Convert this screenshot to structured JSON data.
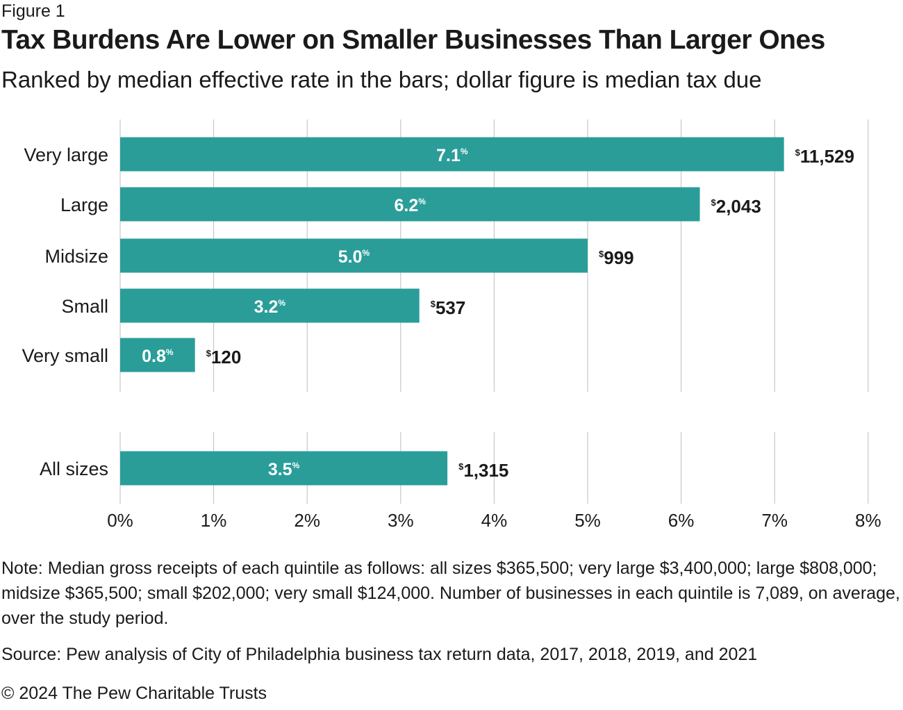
{
  "figure_label": "Figure 1",
  "title": "Tax Burdens Are Lower on Smaller Businesses Than Larger Ones",
  "subtitle": "Ranked by median effective rate in the bars; dollar figure is median tax due",
  "chart_data": {
    "type": "bar",
    "orientation": "horizontal",
    "title": "Tax Burdens Are Lower on Smaller Businesses Than Larger Ones",
    "subtitle": "Ranked by median effective rate in the bars; dollar figure is median tax due",
    "xlabel": "",
    "ylabel": "",
    "xlim": [
      0,
      8
    ],
    "grid": true,
    "bar_color": "#2a9d99",
    "x_ticks": [
      "0%",
      "1%",
      "2%",
      "3%",
      "4%",
      "5%",
      "6%",
      "7%",
      "8%"
    ],
    "categories": [
      "Very large",
      "Large",
      "Midsize",
      "Small",
      "Very small"
    ],
    "values": [
      7.1,
      6.2,
      5.0,
      3.2,
      0.8
    ],
    "value_labels": [
      "7.1",
      "6.2",
      "5.0",
      "3.2",
      "0.8"
    ],
    "tax_due": [
      "11,529",
      "2,043",
      "999",
      "537",
      "120"
    ],
    "summary": {
      "category": "All sizes",
      "value": 3.5,
      "value_label": "3.5",
      "tax_due": "1,315"
    },
    "percent_symbol": "%",
    "dollar_symbol": "$"
  },
  "note": "Note: Median gross receipts of each quintile as follows: all sizes $365,500; very large $3,400,000; large $808,000; midsize $365,500; small $202,000; very small $124,000. Number of businesses in each quintile is 7,089, on average, over the study period.",
  "source": "Source: Pew analysis of City of Philadelphia business tax return data, 2017, 2018, 2019, and 2021",
  "copyright": "© 2024 The Pew Charitable Trusts"
}
